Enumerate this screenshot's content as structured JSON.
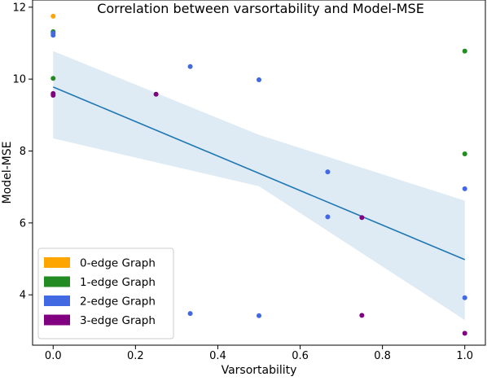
{
  "chart_data": {
    "type": "scatter",
    "title": "Correlation between varsortability and Model-MSE",
    "xlabel": "Varsortability",
    "ylabel": "Model-MSE",
    "xlim": [
      -0.05,
      1.05
    ],
    "ylim": [
      2.6,
      12.2
    ],
    "xticks": [
      0.0,
      0.2,
      0.4,
      0.6,
      0.8,
      1.0
    ],
    "xtick_labels": [
      "0.0",
      "0.2",
      "0.4",
      "0.6",
      "0.8",
      "1.0"
    ],
    "yticks": [
      4,
      6,
      8,
      10,
      12
    ],
    "ytick_labels": [
      "4",
      "6",
      "8",
      "10",
      "12"
    ],
    "grid": false,
    "legend_position": "lower-left",
    "series": [
      {
        "name": "0-edge Graph",
        "color": "#ffa500",
        "points": [
          [
            0.0,
            11.75
          ]
        ]
      },
      {
        "name": "1-edge Graph",
        "color": "#228b22",
        "points": [
          [
            0.0,
            11.32
          ],
          [
            0.0,
            10.02
          ],
          [
            1.0,
            10.78
          ],
          [
            1.0,
            7.92
          ]
        ]
      },
      {
        "name": "2-edge Graph",
        "color": "#4169e1",
        "points": [
          [
            0.0,
            11.28
          ],
          [
            0.0,
            11.22
          ],
          [
            0.333,
            10.35
          ],
          [
            0.5,
            9.98
          ],
          [
            0.667,
            7.42
          ],
          [
            0.667,
            6.17
          ],
          [
            1.0,
            6.95
          ],
          [
            0.333,
            3.48
          ],
          [
            0.5,
            3.42
          ],
          [
            1.0,
            3.92
          ]
        ]
      },
      {
        "name": "3-edge Graph",
        "color": "#800080",
        "points": [
          [
            0.0,
            9.6
          ],
          [
            0.0,
            9.55
          ],
          [
            0.25,
            9.58
          ],
          [
            0.75,
            6.15
          ],
          [
            0.75,
            3.43
          ],
          [
            1.0,
            2.93
          ]
        ]
      }
    ],
    "regression": {
      "color": "#1f77b4",
      "band_color": "#1f77b4",
      "line": [
        [
          0.0,
          9.78
        ],
        [
          1.0,
          4.98
        ]
      ],
      "band_upper": [
        [
          0.0,
          10.78
        ],
        [
          0.5,
          8.45
        ],
        [
          1.0,
          6.62
        ]
      ],
      "band_lower": [
        [
          0.0,
          8.35
        ],
        [
          0.5,
          7.02
        ],
        [
          1.0,
          3.3
        ]
      ]
    }
  }
}
